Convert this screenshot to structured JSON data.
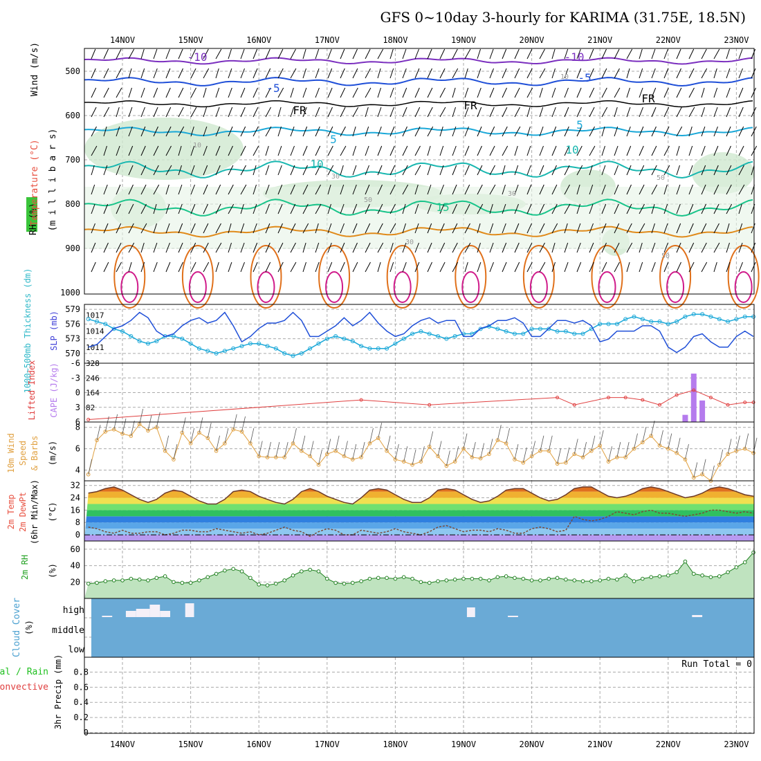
{
  "title": "GFS 0~10day 3-hourly for KARIMA (31.75E, 18.5N)",
  "day_labels": [
    "14NOV",
    "15NOV",
    "16NOV",
    "17NOV",
    "18NOV",
    "19NOV",
    "20NOV",
    "21NOV",
    "22NOV",
    "23NOV"
  ],
  "colors": {
    "temp_line": "#7b2fbf",
    "blue": "#1f4fd8",
    "cyan": "#1aa8d8",
    "teal": "#19b7b0",
    "green": "#19c48a",
    "orange": "#e08a1a",
    "dark_orange": "#e0701a",
    "magenta": "#d01a8a",
    "rh_shade": "#cfe8cf",
    "cloud_bg": "#6aaad6",
    "cape_bar": "#b57bed",
    "li_line": "#e04040",
    "wind_line": "#e0a040",
    "precip_grid": "#aaaaaa"
  },
  "panels": {
    "upper": {
      "label_rh": "RH (%)",
      "label_temp": "Temperature (°C)",
      "label_wind": "Wind (m/s)",
      "ylabel": "(m i l l i b a r s)",
      "yticks": [
        "500",
        "600",
        "700",
        "800",
        "900",
        "1000"
      ]
    },
    "slp": {
      "label_thick": "1000~500mb Thickness (dm)",
      "label_slp": "SLP (mb)",
      "left_ticks": [
        "579",
        "576",
        "573",
        "570"
      ],
      "right_ticks": [
        "1017",
        "1014",
        "1011"
      ]
    },
    "cape": {
      "label_li": "Lifted Index",
      "label_cape": "CAPE (J/kg)",
      "left_ticks": [
        "-6",
        "-3",
        "0",
        "3",
        "6"
      ],
      "right_ticks": [
        "328",
        "246",
        "164",
        "82"
      ]
    },
    "wind10": {
      "label1": "10m Wind",
      "label2": "Speed",
      "label3": "& Barbs",
      "unit": "(m/s)",
      "yticks": [
        "8",
        "6",
        "4"
      ]
    },
    "temp2m": {
      "label1": "2m Temp",
      "label2": "2m DewPt",
      "label3": "(6hr Min/Max)",
      "unit": "(°C)",
      "yticks": [
        "32",
        "24",
        "16",
        "8",
        "0"
      ]
    },
    "rh2m": {
      "label": "2m RH",
      "unit": "(%)",
      "yticks": [
        "60",
        "40",
        "20"
      ]
    },
    "cloud": {
      "label": "Cloud Cover",
      "unit": "(%)",
      "levels": [
        "high",
        "middle",
        "low"
      ]
    },
    "precip": {
      "label1": "Total / Rain",
      "label2": "Convective",
      "label3": "3hr Precip (mm)",
      "yticks": [
        "0.8",
        "0.6",
        "0.4",
        "0.2",
        "0"
      ],
      "run_total": "Run Total = 0"
    }
  },
  "contour_labels": [
    {
      "text": "-10",
      "color": "#7b2fbf"
    },
    {
      "text": "-10",
      "color": "#7b2fbf"
    },
    {
      "text": "-5",
      "color": "#1f4fd8"
    },
    {
      "text": "-5",
      "color": "#1f4fd8"
    },
    {
      "text": "FR",
      "color": "#000000"
    },
    {
      "text": "FR",
      "color": "#000000"
    },
    {
      "text": "FR",
      "color": "#000000"
    },
    {
      "text": "5",
      "color": "#1aa8d8"
    },
    {
      "text": "5",
      "color": "#1aa8d8"
    },
    {
      "text": "10",
      "color": "#19b7b0"
    },
    {
      "text": "10",
      "color": "#19b7b0"
    },
    {
      "text": "15",
      "color": "#19c48a"
    },
    {
      "text": "10",
      "color": "#999999"
    },
    {
      "text": "30",
      "color": "#999999"
    },
    {
      "text": "50",
      "color": "#999999"
    },
    {
      "text": "30",
      "color": "#999999"
    },
    {
      "text": "50",
      "color": "#999999"
    },
    {
      "text": "30",
      "color": "#999999"
    },
    {
      "text": "50",
      "color": "#999999"
    },
    {
      "text": "10",
      "color": "#999999"
    }
  ],
  "chart_data": [
    {
      "type": "line",
      "title": "1000~500mb Thickness and SLP",
      "x_start_day": 13.5,
      "x_step_hours": 3,
      "series": [
        {
          "name": "SLP (mb)",
          "axis": "right",
          "ylim": [
            1008,
            1019
          ],
          "values": [
            1011,
            1011.5,
            1013,
            1014.5,
            1015,
            1016,
            1017.5,
            1016.5,
            1014,
            1013,
            1013.5,
            1015,
            1016,
            1016.5,
            1015.5,
            1016,
            1017.5,
            1015,
            1012,
            1013,
            1014.5,
            1015.5,
            1015.5,
            1016,
            1017.5,
            1016,
            1013,
            1013,
            1014,
            1015,
            1016.5,
            1015,
            1016,
            1017.5,
            1015.5,
            1014,
            1013,
            1013.5,
            1015,
            1016,
            1016.5,
            1015.5,
            1016,
            1016,
            1013,
            1013,
            1014.5,
            1015,
            1016,
            1016,
            1016.5,
            1015.5,
            1013,
            1013,
            1014.5,
            1016,
            1016,
            1015.5,
            1016,
            1015,
            1012,
            1012.5,
            1014,
            1014,
            1014,
            1015,
            1015,
            1014,
            1011,
            1010,
            1011,
            1013,
            1013.5,
            1012,
            1011,
            1011,
            1013,
            1014,
            1013,
            1010,
            1010.5,
            1012,
            1013,
            1012,
            1011,
            1012,
            1013,
            1013.5,
            1013
          ]
        },
        {
          "name": "1000~500mb Thickness (dm)",
          "axis": "left",
          "ylim": [
            568,
            580
          ],
          "values": [
            577,
            576.5,
            576,
            575,
            574.5,
            573.5,
            572.5,
            572,
            572.5,
            573.5,
            573.5,
            573,
            572,
            571,
            570.5,
            570,
            570.5,
            571,
            571.5,
            572,
            572,
            571.5,
            571,
            570,
            569.5,
            570,
            571,
            572,
            573,
            573.5,
            573,
            572.5,
            571.5,
            571,
            571,
            571,
            572,
            573,
            574,
            574.5,
            574,
            573.5,
            573,
            573.5,
            574,
            574,
            575,
            575.5,
            575,
            574.5,
            574,
            574,
            575,
            575,
            575,
            574.5,
            574.5,
            574,
            574,
            575,
            576,
            576,
            576,
            577,
            577.5,
            577,
            576.5,
            576.5,
            576,
            576.5,
            577.5,
            578,
            578,
            577.5,
            577,
            576.5,
            577,
            577.5,
            577.5,
            577,
            576.5,
            577,
            577.5,
            577,
            576.5,
            576,
            576,
            576,
            576
          ]
        }
      ]
    },
    {
      "type": "bar",
      "title": "Lifted Index and CAPE",
      "cape_bars": [
        {
          "day": 22.25,
          "value": 40
        },
        {
          "day": 22.375,
          "value": 270
        },
        {
          "day": 22.5,
          "value": 120
        }
      ],
      "cape_ylim": [
        0,
        328
      ],
      "lifted_index": [
        {
          "day": 13.5,
          "value": 5.5
        },
        {
          "day": 17.5,
          "value": 1.5
        },
        {
          "day": 18.5,
          "value": 2.5
        },
        {
          "day": 20.375,
          "value": 1
        },
        {
          "day": 20.625,
          "value": 2.5
        },
        {
          "day": 21.125,
          "value": 1
        },
        {
          "day": 21.375,
          "value": 1
        },
        {
          "day": 21.625,
          "value": 1.5
        },
        {
          "day": 21.875,
          "value": 2.5
        },
        {
          "day": 22.125,
          "value": 0.5
        },
        {
          "day": 22.375,
          "value": -0.5
        },
        {
          "day": 22.625,
          "value": 1
        },
        {
          "day": 22.875,
          "value": 2.5
        },
        {
          "day": 23.125,
          "value": 2
        },
        {
          "day": 23.25,
          "value": 2
        }
      ],
      "li_ylim": [
        -6,
        6
      ]
    },
    {
      "type": "line",
      "title": "10m Wind Speed",
      "ylim": [
        3,
        8.5
      ],
      "values": [
        3.6,
        6.8,
        7.6,
        7.8,
        7.4,
        7.2,
        8.3,
        7.7,
        8,
        5.8,
        5,
        7.5,
        6.5,
        7.5,
        7,
        5.8,
        6.5,
        7.8,
        7.6,
        6.5,
        5.3,
        5.2,
        5.2,
        5.2,
        6.5,
        5.8,
        5.3,
        4.5,
        5.5,
        5.8,
        5.3,
        5,
        5.2,
        6.5,
        7,
        5.8,
        5,
        4.8,
        4.5,
        4.8,
        6.2,
        5.3,
        4.4,
        4.8,
        6,
        5.2,
        5.1,
        5.5,
        6.8,
        6.5,
        5,
        4.7,
        5.3,
        5.8,
        5.8,
        4.6,
        4.7,
        5.5,
        5.2,
        5.8,
        6.3,
        4.8,
        5.2,
        5.2,
        6,
        6.6,
        7.2,
        6.3,
        6,
        5.6,
        5,
        3.3,
        3.6,
        3,
        4.5,
        5.5,
        5.8,
        6,
        5.6,
        4.2,
        3.5,
        4.5,
        6.5,
        5.5,
        4,
        4.6,
        5.6,
        7,
        7.2
      ]
    },
    {
      "type": "area",
      "title": "2m Temp and DewPt",
      "ylim": [
        -4,
        35
      ],
      "temp_values": [
        27,
        28,
        30,
        31,
        29,
        26,
        23,
        21,
        23,
        27,
        29,
        28,
        25,
        22,
        20,
        20,
        23,
        28,
        29,
        28,
        25,
        23,
        21,
        20,
        23,
        28,
        30,
        28,
        25,
        23,
        21,
        20,
        24,
        29,
        30,
        29,
        26,
        23,
        21,
        21,
        24,
        29,
        30,
        29,
        26,
        23,
        21,
        22,
        25,
        29,
        30,
        30,
        27,
        24,
        22,
        23,
        26,
        30,
        31,
        31,
        28,
        25,
        24,
        25,
        27,
        30,
        31,
        30,
        28,
        26,
        24,
        25,
        27,
        30,
        31,
        30,
        28,
        26,
        25,
        26,
        28,
        30,
        31,
        30,
        28,
        27,
        26,
        25
      ],
      "dew_values": [
        5,
        4,
        2,
        1,
        3,
        1,
        1,
        2,
        2,
        0,
        1,
        3,
        3,
        2,
        2,
        4,
        3,
        2,
        1,
        2,
        0,
        1,
        3,
        5,
        3,
        2,
        -1,
        2,
        4,
        3,
        0,
        0,
        3,
        2,
        1,
        2,
        4,
        2,
        1,
        0,
        2,
        5,
        6,
        4,
        2,
        3,
        3,
        2,
        4,
        3,
        1,
        1,
        4,
        5,
        4,
        2,
        3,
        12,
        10,
        9,
        10,
        12,
        15,
        14,
        13,
        15,
        16,
        14,
        14,
        13,
        12,
        13,
        14,
        16,
        16,
        15,
        14,
        15,
        14,
        15,
        14,
        15,
        14,
        13,
        14,
        14,
        14,
        14
      ]
    },
    {
      "type": "area",
      "title": "2m RH",
      "ylim": [
        0,
        70
      ],
      "values": [
        18,
        19,
        21,
        22,
        22,
        24,
        23,
        22,
        25,
        27,
        20,
        19,
        19,
        22,
        26,
        30,
        34,
        36,
        33,
        25,
        17,
        16,
        18,
        22,
        28,
        33,
        35,
        33,
        24,
        19,
        18,
        19,
        21,
        24,
        25,
        25,
        24,
        26,
        24,
        20,
        19,
        21,
        22,
        23,
        24,
        24,
        24,
        22,
        26,
        27,
        25,
        24,
        22,
        22,
        24,
        25,
        23,
        22,
        21,
        21,
        22,
        24,
        23,
        28,
        21,
        24,
        26,
        27,
        28,
        32,
        45,
        30,
        28,
        26,
        27,
        32,
        38,
        44,
        56,
        63,
        58,
        40,
        31,
        26,
        28,
        32,
        40,
        48,
        55,
        52
      ]
    },
    {
      "type": "bar",
      "title": "Cloud Cover",
      "blocks": [
        {
          "level": "high",
          "start": 13.7,
          "end": 13.85
        },
        {
          "level": "high",
          "start": 14.05,
          "end": 14.2
        },
        {
          "level": "high",
          "start": 14.2,
          "end": 14.4
        },
        {
          "level": "high",
          "start": 14.4,
          "end": 14.55
        },
        {
          "level": "high",
          "start": 14.55,
          "end": 14.7
        },
        {
          "level": "high",
          "start": 14.92,
          "end": 15.05
        },
        {
          "level": "high",
          "start": 19.05,
          "end": 19.17
        },
        {
          "level": "high",
          "start": 19.65,
          "end": 19.8
        },
        {
          "level": "high",
          "start": 22.35,
          "end": 22.5
        }
      ]
    },
    {
      "type": "bar",
      "title": "3hr Precip",
      "ylim": [
        0,
        1
      ],
      "values": []
    }
  ]
}
